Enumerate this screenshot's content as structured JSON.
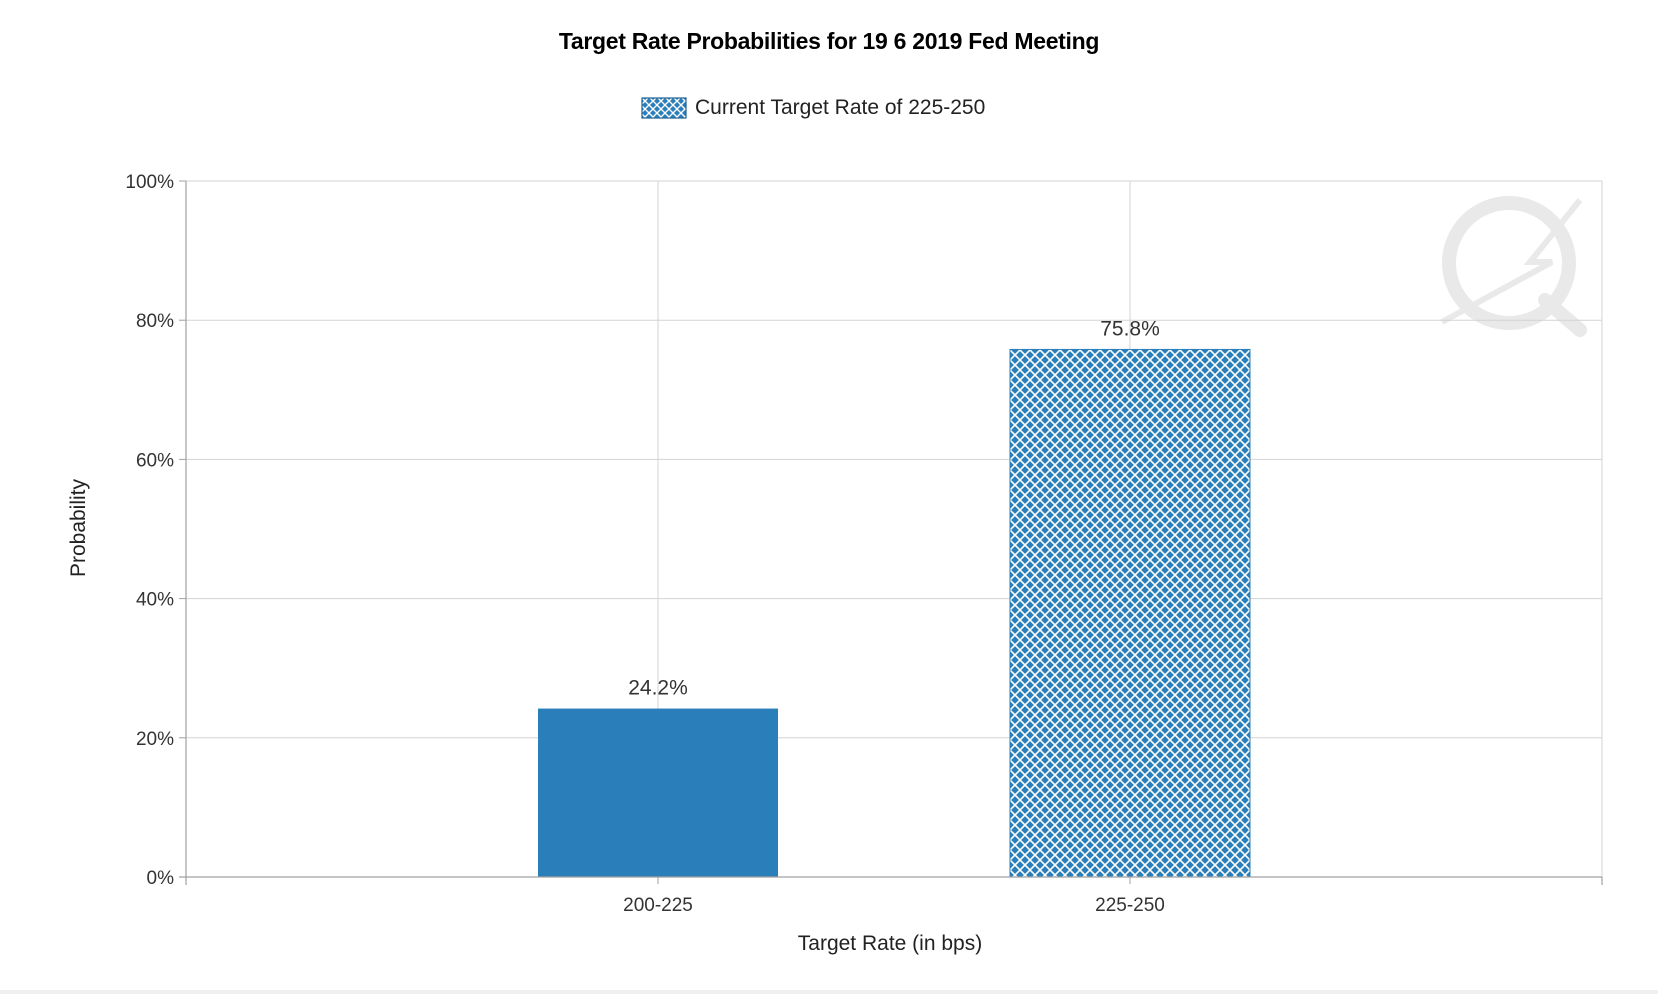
{
  "chart_data": {
    "type": "bar",
    "title": "Target Rate Probabilities for 19 6 2019 Fed Meeting",
    "legend": {
      "label": "Current Target Rate of 225-250",
      "placement": "top-center"
    },
    "categories": [
      "200-225",
      "225-250"
    ],
    "values": [
      24.2,
      75.8
    ],
    "data_labels": [
      "24.2%",
      "75.8%"
    ],
    "bar_styles": [
      "solid",
      "crosshatch"
    ],
    "xlabel": "Target Rate (in bps)",
    "ylabel": "Probability",
    "ylim": [
      0,
      100
    ],
    "yticks": [
      0,
      20,
      40,
      60,
      80,
      100
    ],
    "ytick_labels": [
      "0%",
      "20%",
      "40%",
      "60%",
      "80%",
      "100%"
    ],
    "grid": true,
    "colors": {
      "bar": "#2a7fba",
      "hatch": "#ffffff",
      "grid": "#d3d3d3",
      "axis": "#a0a0a0"
    }
  }
}
